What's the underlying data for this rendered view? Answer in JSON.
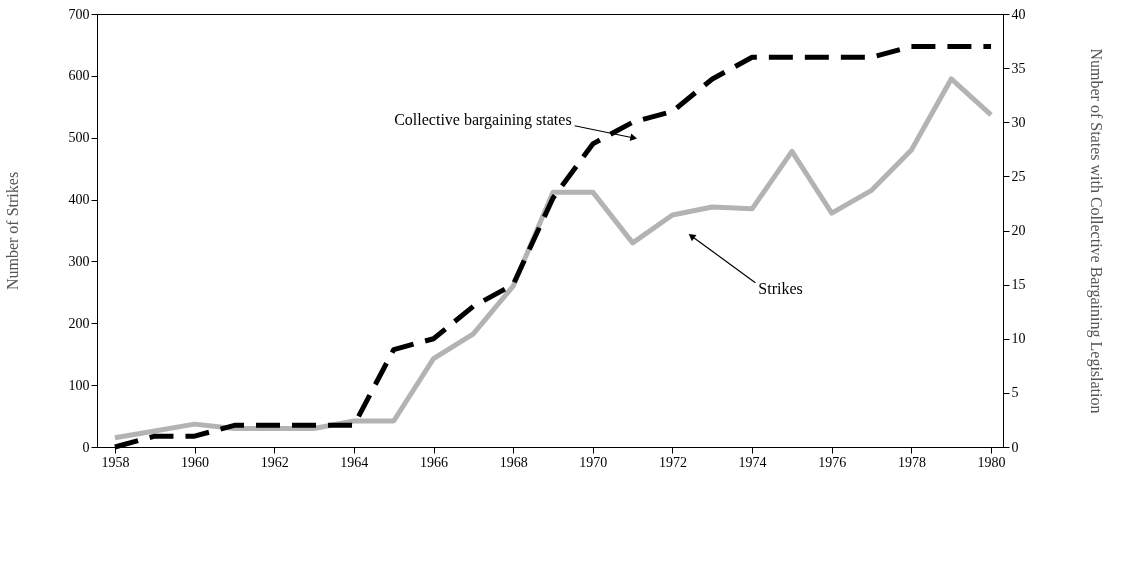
{
  "chart_data": {
    "type": "line",
    "x": [
      1958,
      1959,
      1960,
      1961,
      1962,
      1963,
      1964,
      1965,
      1966,
      1967,
      1968,
      1969,
      1970,
      1971,
      1972,
      1973,
      1974,
      1975,
      1976,
      1977,
      1978,
      1979,
      1980
    ],
    "series": [
      {
        "color": "#b3b3b3",
        "line_style": "solid",
        "values": [
          15,
          26,
          37,
          30,
          30,
          30,
          42,
          42,
          143,
          183,
          260,
          412,
          412,
          330,
          375,
          388,
          385,
          478,
          378,
          415,
          480,
          595,
          537
        ]
      },
      {
        "color": "#000000",
        "line_style": "dashed",
        "axis": "y2",
        "values": [
          0,
          1,
          1,
          2,
          2,
          2,
          2,
          9,
          10,
          13,
          15,
          23,
          28,
          30,
          31,
          34,
          36,
          36,
          36,
          36,
          37,
          37,
          37
        ]
      }
    ],
    "xlim": [
      1957.55,
      1980.3
    ],
    "xticks": [
      1958,
      1960,
      1962,
      1964,
      1966,
      1968,
      1970,
      1972,
      1974,
      1976,
      1978,
      1980
    ],
    "ylim": [
      0,
      700
    ],
    "yticks": [
      0,
      100,
      200,
      300,
      400,
      500,
      600,
      700
    ],
    "y2lim": [
      0,
      40
    ],
    "y2ticks": [
      0,
      5,
      10,
      15,
      20,
      25,
      30,
      35,
      40
    ],
    "ylabel": "Number of Strikes",
    "y2label": "Number of States with Collective Bargaining Legislation",
    "grid": false,
    "annotations": [
      {
        "text": "Collective bargaining states",
        "x": 1971,
        "y": 500
      },
      {
        "text": "Strikes",
        "x": 1972.5,
        "y": 340
      }
    ]
  }
}
